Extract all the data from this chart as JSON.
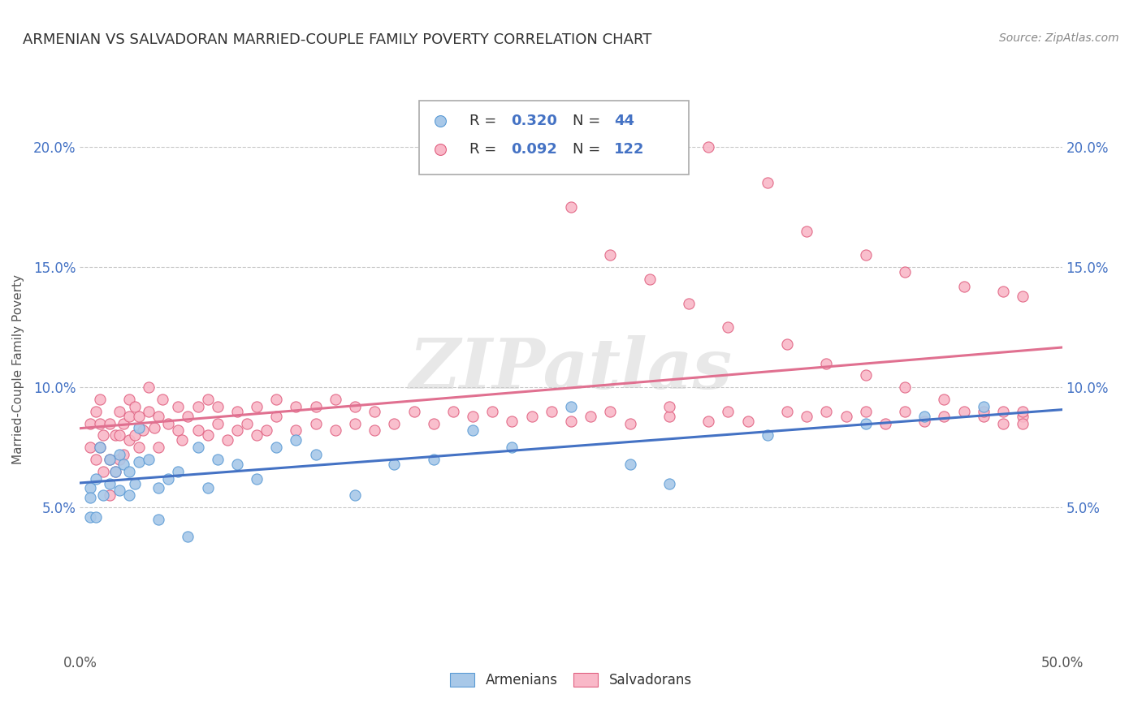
{
  "title": "ARMENIAN VS SALVADORAN MARRIED-COUPLE FAMILY POVERTY CORRELATION CHART",
  "source": "Source: ZipAtlas.com",
  "xlabel_armenians": "Armenians",
  "xlabel_salvadorans": "Salvadorans",
  "ylabel": "Married-Couple Family Poverty",
  "watermark": "ZIPatlas",
  "legend_r_armenian": "0.320",
  "legend_n_armenian": "44",
  "legend_r_salvadoran": "0.092",
  "legend_n_salvadoran": "122",
  "xlim": [
    0.0,
    0.5
  ],
  "ylim": [
    -0.01,
    0.225
  ],
  "xticks": [
    0.0,
    0.1,
    0.2,
    0.3,
    0.4,
    0.5
  ],
  "xtick_labels_show": [
    "0.0%",
    "",
    "",
    "",
    "",
    "50.0%"
  ],
  "yticks": [
    0.05,
    0.1,
    0.15,
    0.2
  ],
  "ytick_labels": [
    "5.0%",
    "10.0%",
    "15.0%",
    "20.0%"
  ],
  "color_armenian": "#a8c8e8",
  "color_salvadoran": "#f9b8c8",
  "edge_armenian": "#5b9bd5",
  "edge_salvadoran": "#e06080",
  "line_armenian": "#4472c4",
  "line_salvadoran": "#e07090",
  "background_color": "#ffffff",
  "grid_color": "#bbbbbb",
  "armenian_x": [
    0.005,
    0.005,
    0.005,
    0.008,
    0.008,
    0.01,
    0.012,
    0.015,
    0.015,
    0.018,
    0.02,
    0.02,
    0.022,
    0.025,
    0.025,
    0.028,
    0.03,
    0.03,
    0.035,
    0.04,
    0.04,
    0.045,
    0.05,
    0.055,
    0.06,
    0.065,
    0.07,
    0.08,
    0.09,
    0.1,
    0.11,
    0.12,
    0.14,
    0.16,
    0.18,
    0.2,
    0.22,
    0.25,
    0.28,
    0.3,
    0.35,
    0.4,
    0.43,
    0.46
  ],
  "armenian_y": [
    0.046,
    0.058,
    0.054,
    0.046,
    0.062,
    0.075,
    0.055,
    0.06,
    0.07,
    0.065,
    0.072,
    0.057,
    0.068,
    0.055,
    0.065,
    0.06,
    0.069,
    0.083,
    0.07,
    0.058,
    0.045,
    0.062,
    0.065,
    0.038,
    0.075,
    0.058,
    0.07,
    0.068,
    0.062,
    0.075,
    0.078,
    0.072,
    0.055,
    0.068,
    0.07,
    0.082,
    0.075,
    0.092,
    0.068,
    0.06,
    0.08,
    0.085,
    0.088,
    0.092
  ],
  "salvadoran_x": [
    0.005,
    0.005,
    0.008,
    0.008,
    0.01,
    0.01,
    0.01,
    0.012,
    0.012,
    0.015,
    0.015,
    0.015,
    0.018,
    0.018,
    0.02,
    0.02,
    0.02,
    0.022,
    0.022,
    0.025,
    0.025,
    0.025,
    0.028,
    0.028,
    0.03,
    0.03,
    0.032,
    0.035,
    0.035,
    0.038,
    0.04,
    0.04,
    0.042,
    0.045,
    0.05,
    0.05,
    0.052,
    0.055,
    0.06,
    0.06,
    0.065,
    0.065,
    0.07,
    0.07,
    0.075,
    0.08,
    0.08,
    0.085,
    0.09,
    0.09,
    0.095,
    0.1,
    0.1,
    0.11,
    0.11,
    0.12,
    0.12,
    0.13,
    0.13,
    0.14,
    0.14,
    0.15,
    0.15,
    0.16,
    0.17,
    0.18,
    0.19,
    0.2,
    0.21,
    0.22,
    0.23,
    0.24,
    0.25,
    0.26,
    0.27,
    0.28,
    0.3,
    0.3,
    0.32,
    0.33,
    0.34,
    0.36,
    0.37,
    0.38,
    0.39,
    0.4,
    0.41,
    0.42,
    0.43,
    0.44,
    0.45,
    0.46,
    0.47,
    0.47,
    0.48,
    0.48,
    0.19,
    0.22,
    0.25,
    0.27,
    0.29,
    0.31,
    0.33,
    0.36,
    0.38,
    0.4,
    0.42,
    0.44,
    0.46,
    0.48,
    0.32,
    0.35,
    0.37,
    0.4,
    0.42,
    0.45,
    0.47,
    0.48
  ],
  "salvadoran_y": [
    0.075,
    0.085,
    0.07,
    0.09,
    0.075,
    0.085,
    0.095,
    0.065,
    0.08,
    0.055,
    0.07,
    0.085,
    0.065,
    0.08,
    0.07,
    0.08,
    0.09,
    0.072,
    0.085,
    0.078,
    0.088,
    0.095,
    0.08,
    0.092,
    0.075,
    0.088,
    0.082,
    0.09,
    0.1,
    0.083,
    0.075,
    0.088,
    0.095,
    0.085,
    0.082,
    0.092,
    0.078,
    0.088,
    0.082,
    0.092,
    0.08,
    0.095,
    0.085,
    0.092,
    0.078,
    0.082,
    0.09,
    0.085,
    0.08,
    0.092,
    0.082,
    0.088,
    0.095,
    0.082,
    0.092,
    0.085,
    0.092,
    0.082,
    0.095,
    0.085,
    0.092,
    0.082,
    0.09,
    0.085,
    0.09,
    0.085,
    0.09,
    0.088,
    0.09,
    0.086,
    0.088,
    0.09,
    0.086,
    0.088,
    0.09,
    0.085,
    0.088,
    0.092,
    0.086,
    0.09,
    0.086,
    0.09,
    0.088,
    0.09,
    0.088,
    0.09,
    0.085,
    0.09,
    0.086,
    0.088,
    0.09,
    0.088,
    0.09,
    0.085,
    0.088,
    0.09,
    0.195,
    0.195,
    0.175,
    0.155,
    0.145,
    0.135,
    0.125,
    0.118,
    0.11,
    0.105,
    0.1,
    0.095,
    0.09,
    0.085,
    0.2,
    0.185,
    0.165,
    0.155,
    0.148,
    0.142,
    0.14,
    0.138
  ]
}
